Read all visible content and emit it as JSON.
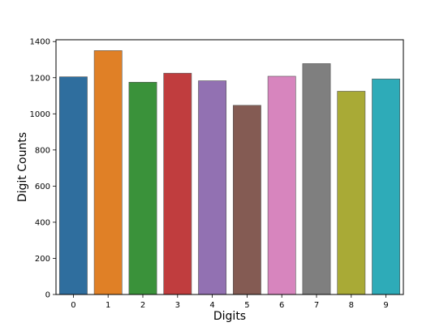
{
  "chart_data": {
    "type": "bar",
    "title": "",
    "xlabel": "Digits",
    "ylabel": "Digit Counts",
    "categories": [
      "0",
      "1",
      "2",
      "3",
      "4",
      "5",
      "6",
      "7",
      "8",
      "9"
    ],
    "values": [
      1205,
      1350,
      1175,
      1225,
      1183,
      1047,
      1208,
      1278,
      1125,
      1193
    ],
    "yticks": [
      "0",
      "200",
      "400",
      "600",
      "800",
      "1000",
      "1200",
      "1400"
    ],
    "ylim": [
      0,
      1410
    ],
    "grid": false,
    "legend": "none",
    "colors": [
      "#2f6e9e",
      "#e08026",
      "#3a923a",
      "#c03d3e",
      "#9271b2",
      "#845b53",
      "#d785be",
      "#7f7f7f",
      "#a9aa36",
      "#2eabb8"
    ]
  }
}
